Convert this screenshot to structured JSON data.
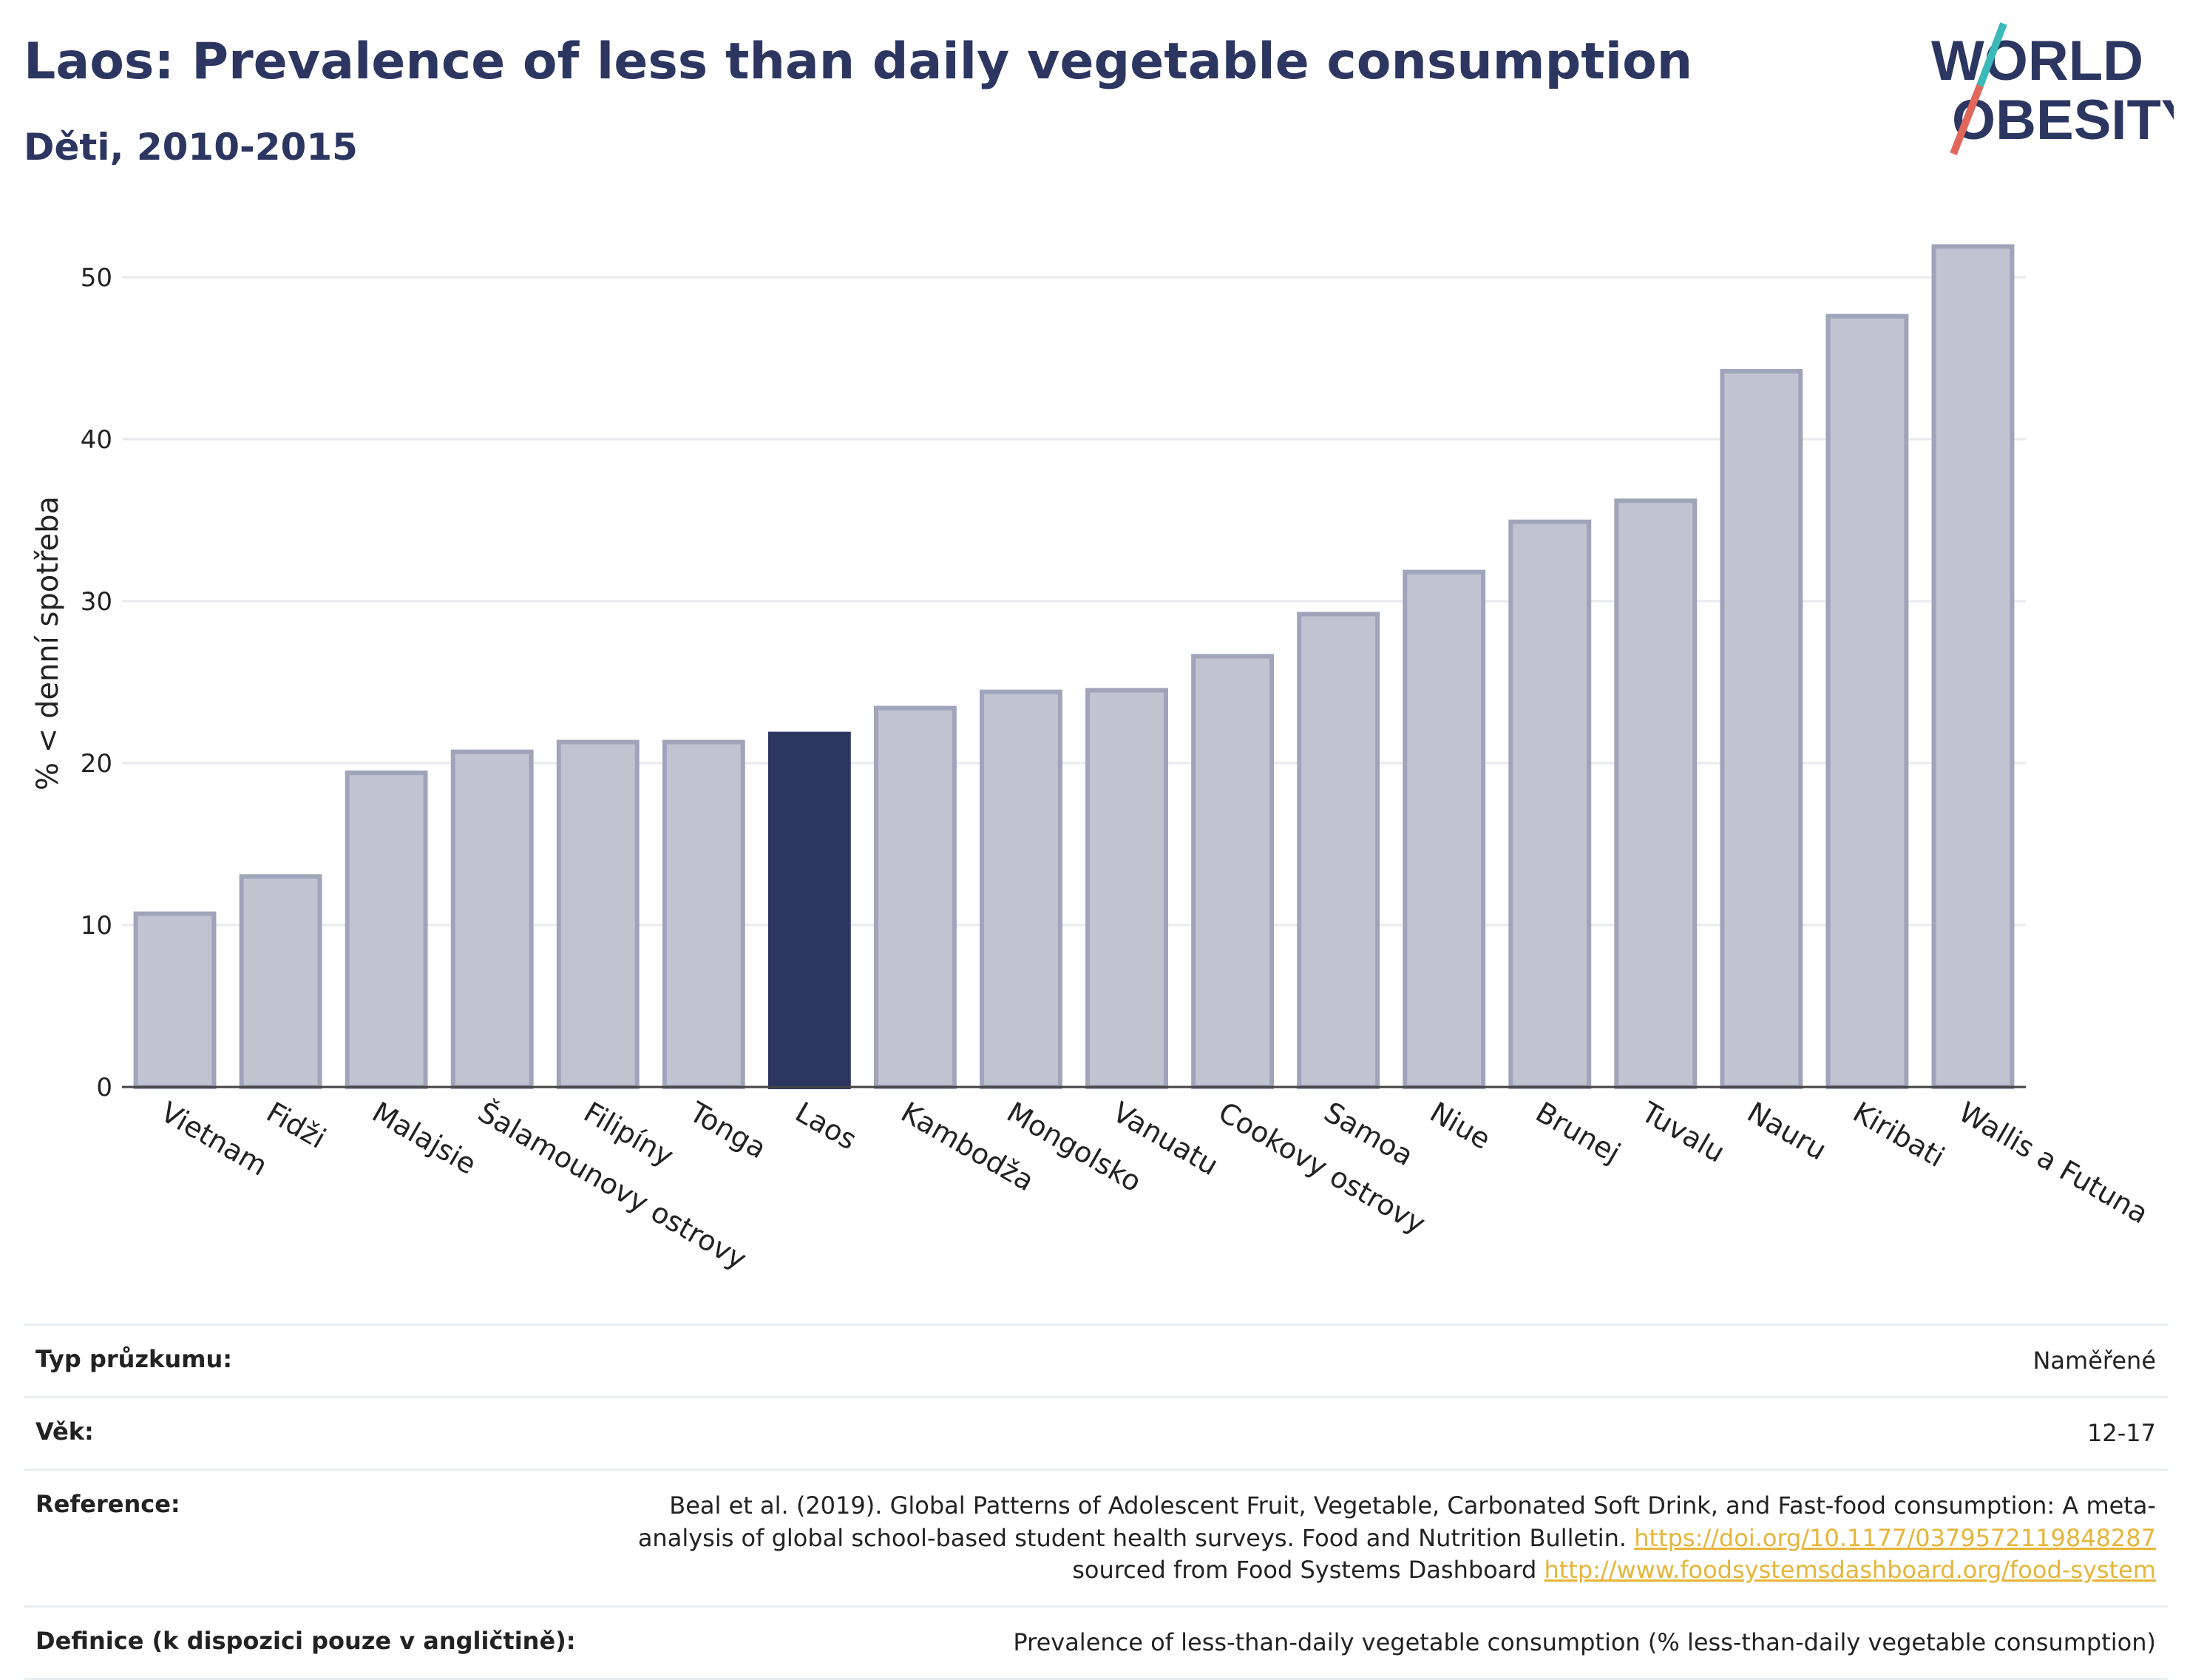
{
  "title": "Laos: Prevalence of less than daily vegetable consumption",
  "subtitle": "Děti, 2010-2015",
  "logo": {
    "line1": "WORLD",
    "line2": "OBESITY",
    "colors": {
      "text": "#2c3661",
      "slash_teal": "#3bb8b8",
      "slash_red": "#e0675a"
    }
  },
  "colors": {
    "bar_default": "#c0c3d0",
    "bar_default_border": "#9fa4bb",
    "bar_highlight": "#2c3661",
    "grid": "#e8eaef",
    "axis": "#444444"
  },
  "chart_data": {
    "type": "bar",
    "title": "Laos: Prevalence of less than daily vegetable consumption",
    "subtitle": "Děti, 2010-2015",
    "xlabel": "",
    "ylabel": "% < denní spotřeba",
    "ylim": [
      0,
      54
    ],
    "yticks": [
      0,
      10,
      20,
      30,
      40,
      50
    ],
    "grid": true,
    "highlight": "Laos",
    "categories": [
      "Vietnam",
      "Fidži",
      "Malajsie",
      "Šalamounovy ostrovy",
      "Filipíny",
      "Tonga",
      "Laos",
      "Kambodža",
      "Mongolsko",
      "Vanuatu",
      "Cookovy ostrovy",
      "Samoa",
      "Niue",
      "Brunej",
      "Tuvalu",
      "Nauru",
      "Kiribati",
      "Wallis a Futuna"
    ],
    "values": [
      10.7,
      13.0,
      19.4,
      20.7,
      21.3,
      21.3,
      21.8,
      23.4,
      24.4,
      24.5,
      26.6,
      29.2,
      31.8,
      34.9,
      36.2,
      44.2,
      47.6,
      51.9
    ]
  },
  "info": {
    "survey_type_label": "Typ průzkumu:",
    "survey_type_value": "Naměřené",
    "age_label": "Věk:",
    "age_value": "12-17",
    "reference_label": "Reference:",
    "reference_text": "Beal et al. (2019). Global Patterns of Adolescent Fruit, Vegetable, Carbonated Soft Drink, and Fast-food consumption: A meta-analysis of global school-based student health surveys. Food and Nutrition Bulletin.",
    "reference_link1": "https://doi.org/10.1177/0379572119848287",
    "reference_mid": "sourced from Food Systems Dashboard",
    "reference_link2": "http://www.foodsystemsdashboard.org/food-system",
    "definition_label": "Definice (k dispozici pouze v angličtině):",
    "definition_value": "Prevalence of less-than-daily vegetable consumption (% less-than-daily vegetable consumption)"
  }
}
